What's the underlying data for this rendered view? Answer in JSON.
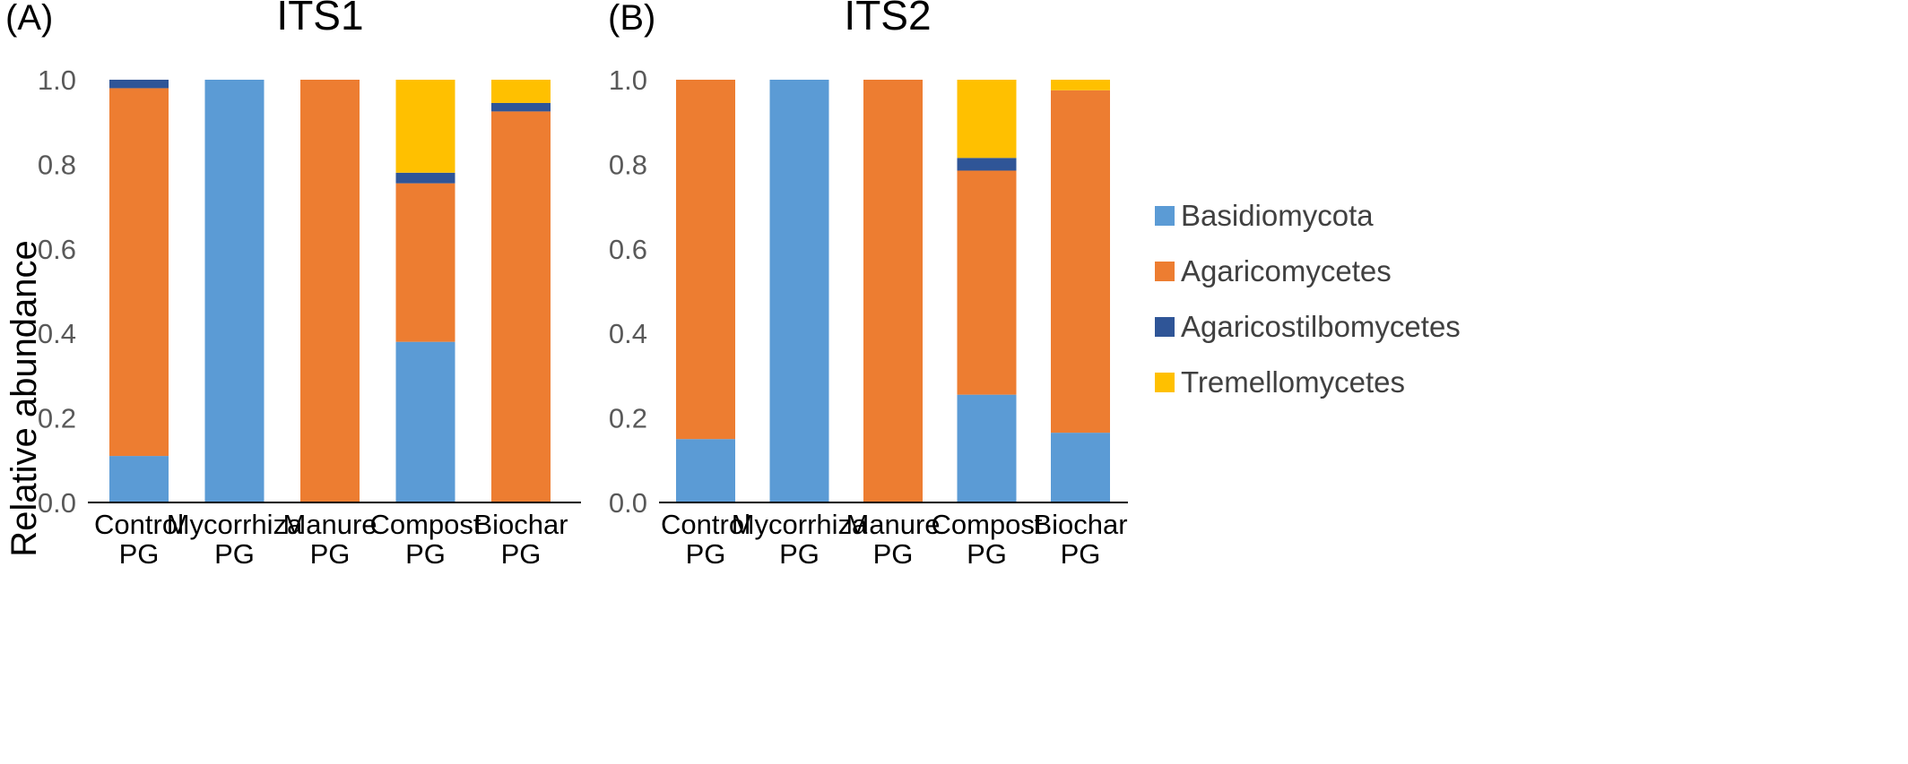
{
  "figure": {
    "ylabel": "Relative abundance",
    "colors": {
      "Basidiomycota": "#5B9BD5",
      "Agaricomycetes": "#ED7D31",
      "Agaricostilbomycetes": "#2F5597",
      "Tremellomycetes": "#FFC000"
    },
    "legend": [
      "Basidiomycota",
      "Agaricomycetes",
      "Agaricostilbomycetes",
      "Tremellomycetes"
    ]
  },
  "chart_data": [
    {
      "type": "bar",
      "stacked": true,
      "panel_label": "(A)",
      "title": "ITS1",
      "ylabel": "Relative abundance",
      "ylim": [
        0,
        1.0
      ],
      "yticks": [
        "0.0",
        "0.2",
        "0.4",
        "0.6",
        "0.8",
        "1.0"
      ],
      "categories": [
        [
          "Control",
          "PG"
        ],
        [
          "Mycorrhiza",
          "PG"
        ],
        [
          "Manure",
          "PG"
        ],
        [
          "Compost",
          "PG"
        ],
        [
          "Biochar",
          "PG"
        ]
      ],
      "series": [
        {
          "name": "Basidiomycota",
          "values": [
            0.11,
            1.0,
            0.0,
            0.38,
            0.0
          ]
        },
        {
          "name": "Agaricomycetes",
          "values": [
            0.87,
            0.0,
            1.0,
            0.375,
            0.925
          ]
        },
        {
          "name": "Agaricostilbomycetes",
          "values": [
            0.02,
            0.0,
            0.0,
            0.025,
            0.02
          ]
        },
        {
          "name": "Tremellomycetes",
          "values": [
            0.0,
            0.0,
            0.0,
            0.22,
            0.055
          ]
        }
      ]
    },
    {
      "type": "bar",
      "stacked": true,
      "panel_label": "(B)",
      "title": "ITS2",
      "ylim": [
        0,
        1.0
      ],
      "yticks": [
        "0.0",
        "0.2",
        "0.4",
        "0.6",
        "0.8",
        "1.0"
      ],
      "categories": [
        [
          "Control",
          "PG"
        ],
        [
          "Mycorrhiza",
          "PG"
        ],
        [
          "Manure",
          "PG"
        ],
        [
          "Compost",
          "PG"
        ],
        [
          "Biochar",
          "PG"
        ]
      ],
      "series": [
        {
          "name": "Basidiomycota",
          "values": [
            0.15,
            1.0,
            0.0,
            0.255,
            0.165
          ]
        },
        {
          "name": "Agaricomycetes",
          "values": [
            0.85,
            0.0,
            1.0,
            0.53,
            0.81
          ]
        },
        {
          "name": "Agaricostilbomycetes",
          "values": [
            0.0,
            0.0,
            0.0,
            0.03,
            0.0
          ]
        },
        {
          "name": "Tremellomycetes",
          "values": [
            0.0,
            0.0,
            0.0,
            0.185,
            0.025
          ]
        }
      ]
    }
  ]
}
